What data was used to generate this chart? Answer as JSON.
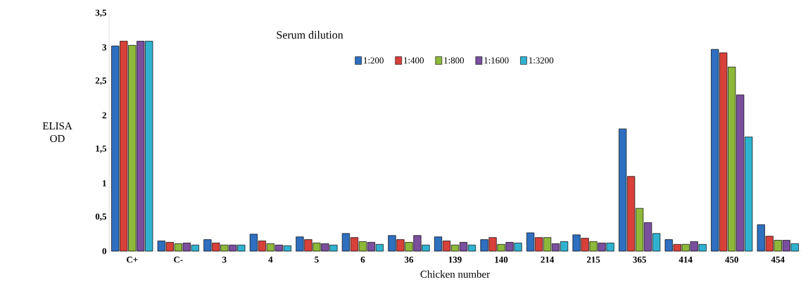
{
  "chart_data": {
    "type": "bar",
    "xlabel": "Chicken number",
    "ylabel": "ELISA OD",
    "legend_title": "Serum dilution",
    "legend": "top",
    "categories": [
      "C+",
      "C-",
      "3",
      "4",
      "5",
      "6",
      "36",
      "139",
      "140",
      "214",
      "215",
      "365",
      "414",
      "450",
      "454"
    ],
    "ylim": [
      0,
      3.5
    ],
    "yticks": [
      0,
      {
        "value": 0.5,
        "label": "0,5"
      },
      1,
      {
        "value": 1.5,
        "label": "1,5"
      },
      2,
      {
        "value": 2.5,
        "label": "2,5"
      },
      3,
      {
        "value": 3.5,
        "label": "3,5"
      }
    ],
    "grid": false,
    "series": [
      {
        "name": "1:200",
        "color": "#2e6fbf",
        "values": [
          3.02,
          0.15,
          0.17,
          0.25,
          0.21,
          0.26,
          0.23,
          0.21,
          0.17,
          0.27,
          0.24,
          1.8,
          0.17,
          2.97,
          0.39
        ]
      },
      {
        "name": "1:400",
        "color": "#d8403a",
        "values": [
          3.09,
          0.13,
          0.12,
          0.15,
          0.17,
          0.2,
          0.17,
          0.15,
          0.2,
          0.2,
          0.19,
          1.1,
          0.1,
          2.92,
          0.22
        ]
      },
      {
        "name": "1:800",
        "color": "#8db83a",
        "values": [
          3.03,
          0.11,
          0.09,
          0.11,
          0.12,
          0.14,
          0.13,
          0.09,
          0.1,
          0.2,
          0.14,
          0.63,
          0.1,
          2.71,
          0.16
        ]
      },
      {
        "name": "1:1600",
        "color": "#7a4f9e",
        "values": [
          3.09,
          0.12,
          0.09,
          0.09,
          0.11,
          0.13,
          0.23,
          0.13,
          0.13,
          0.11,
          0.12,
          0.42,
          0.14,
          2.3,
          0.16
        ]
      },
      {
        "name": "1:3200",
        "color": "#2fb2d0",
        "values": [
          3.09,
          0.09,
          0.09,
          0.08,
          0.09,
          0.1,
          0.09,
          0.09,
          0.12,
          0.14,
          0.12,
          0.26,
          0.1,
          1.68,
          0.11
        ]
      }
    ]
  }
}
